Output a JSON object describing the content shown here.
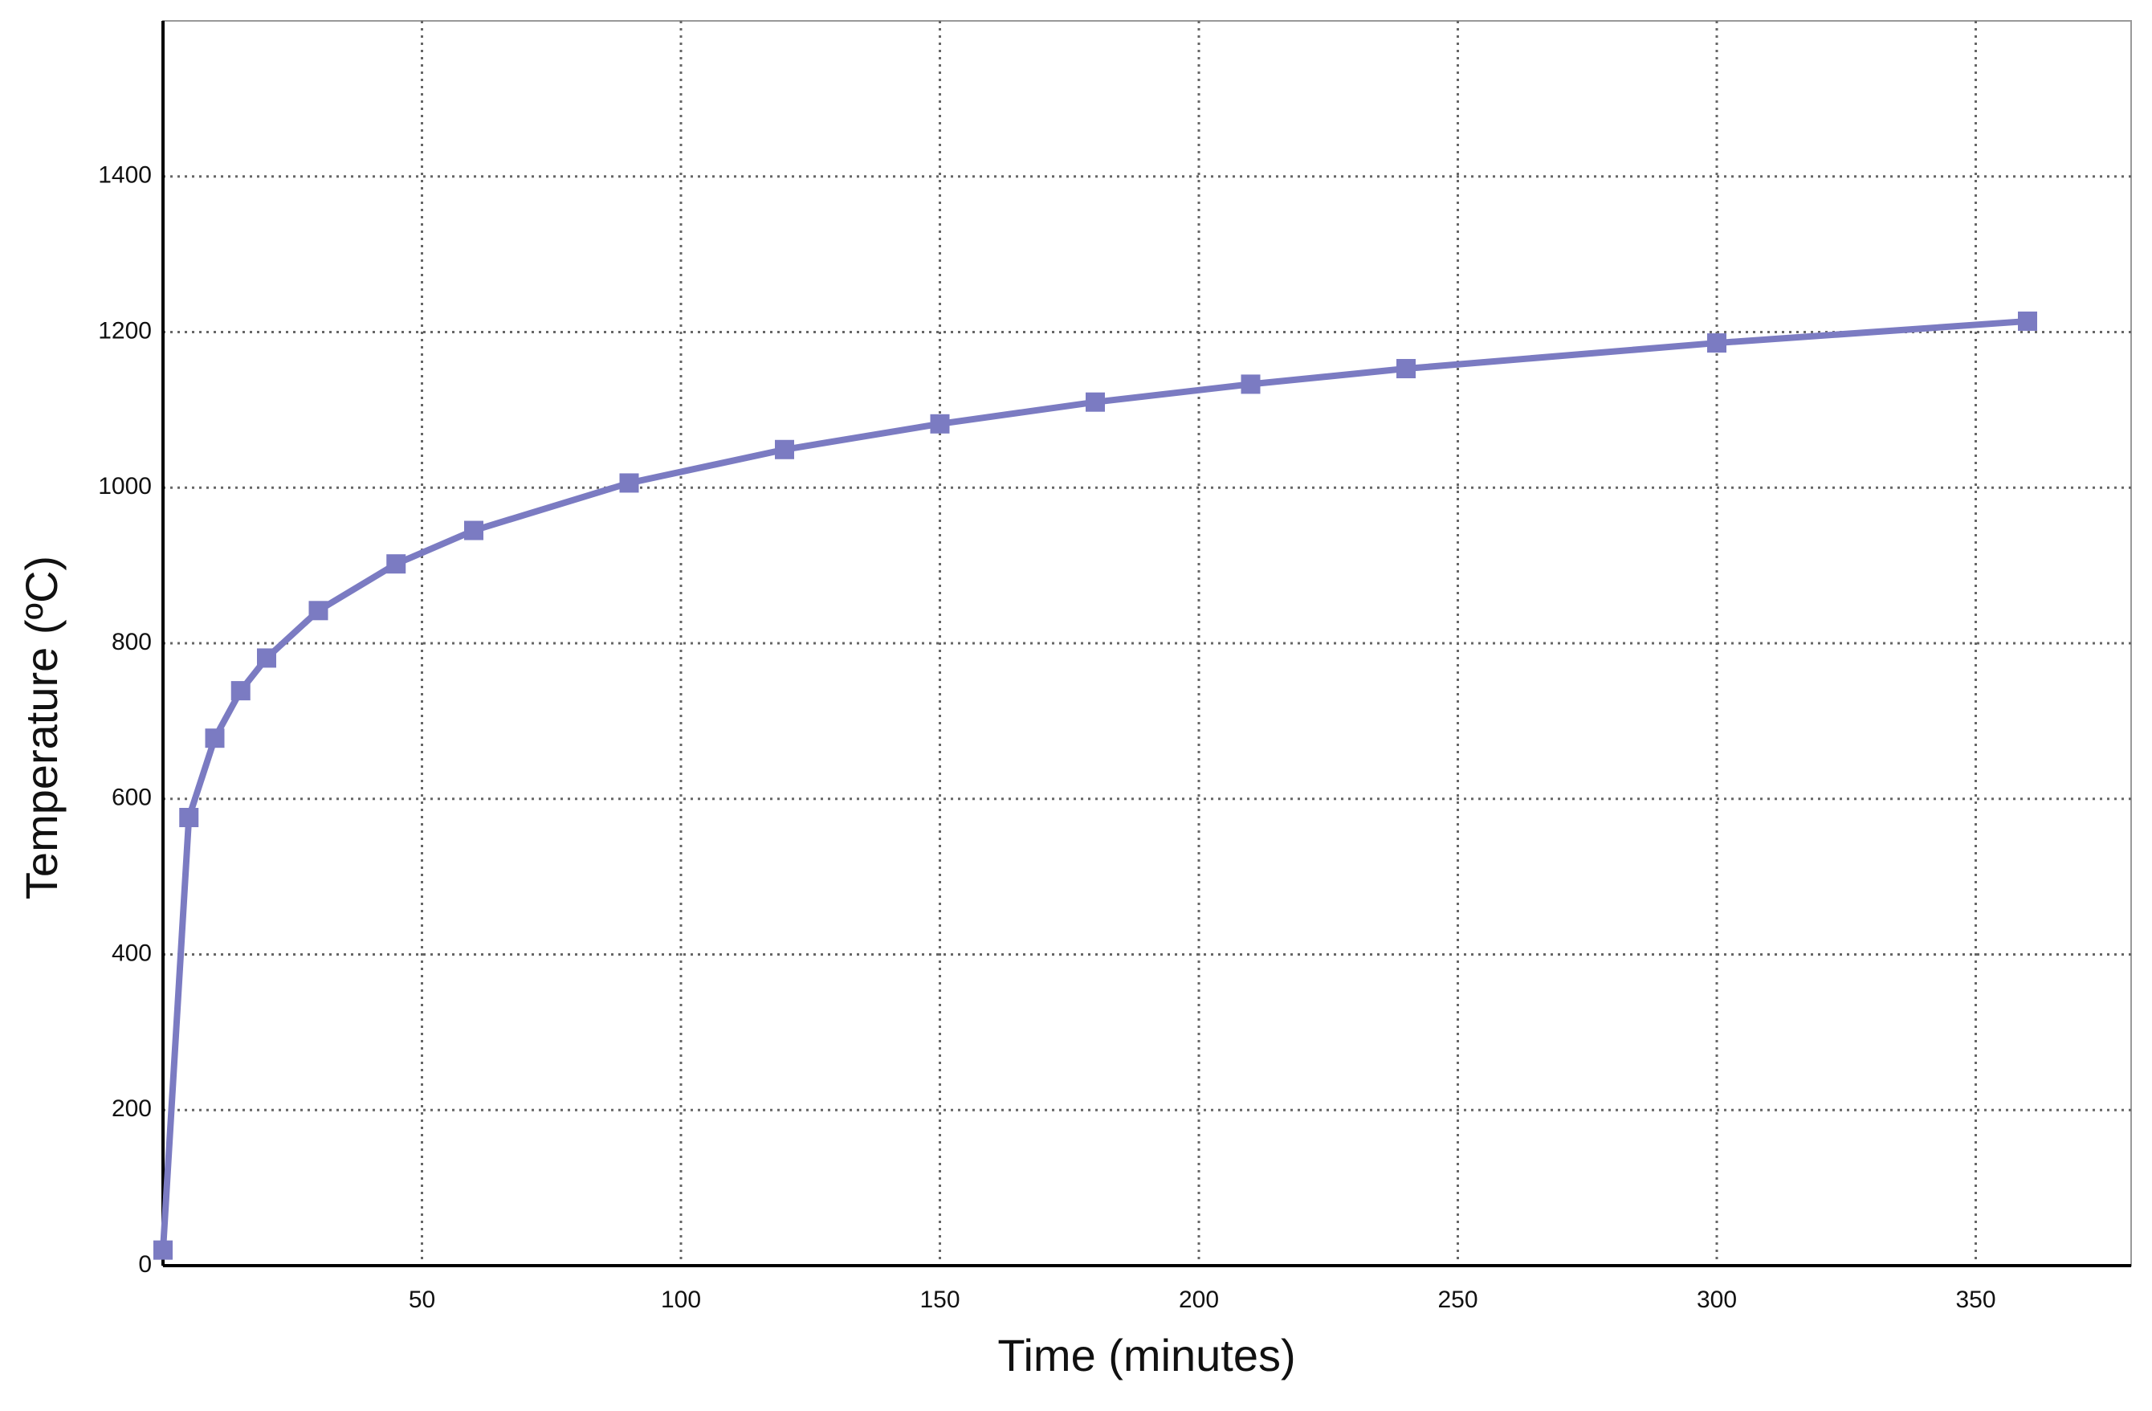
{
  "chart_data": {
    "type": "line",
    "x_label": "Time (minutes)",
    "y_label": "Temperature (ºC)",
    "x": [
      0,
      5,
      10,
      15,
      20,
      30,
      45,
      60,
      90,
      120,
      150,
      180,
      210,
      240,
      300,
      360
    ],
    "series": [
      {
        "color": "#7b7bc2",
        "values": [
          20,
          576,
          678,
          739,
          781,
          842,
          902,
          945,
          1006,
          1049,
          1082,
          1110,
          1133,
          1153,
          1186,
          1214
        ]
      }
    ],
    "xlim": [
      0,
      380
    ],
    "xticks": [
      50,
      100,
      150,
      200,
      250,
      300,
      350
    ],
    "ylim": [
      0,
      1600
    ],
    "yticks": [
      0,
      200,
      400,
      600,
      800,
      1000,
      1200,
      1400
    ],
    "grid": true
  }
}
